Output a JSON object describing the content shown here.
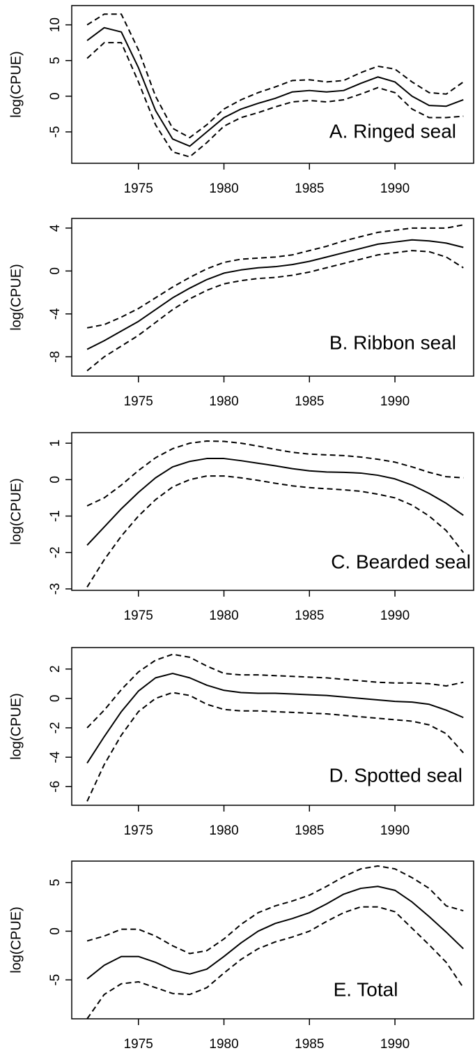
{
  "chart_data": [
    {
      "type": "line",
      "annotation": "A. Ringed seal",
      "y_label": "log(CPUE)",
      "x": [
        1972,
        1973,
        1974,
        1975,
        1976,
        1977,
        1978,
        1979,
        1980,
        1981,
        1982,
        1983,
        1984,
        1985,
        1986,
        1987,
        1988,
        1989,
        1990,
        1991,
        1992,
        1993,
        1994
      ],
      "xlim": [
        1971.1,
        1994.6
      ],
      "xticks": [
        1975,
        1980,
        1985,
        1990
      ],
      "ylim": [
        -9.4,
        12.7
      ],
      "yticks": [
        -5,
        0,
        5,
        10
      ],
      "series": [
        {
          "color": "#000000",
          "dash": false,
          "values": [
            7.8,
            9.6,
            9.0,
            4.0,
            -2.0,
            -6.0,
            -7.0,
            -5.0,
            -3.0,
            -1.8,
            -1.0,
            -0.3,
            0.6,
            0.8,
            0.6,
            0.8,
            1.8,
            2.7,
            2.0,
            0.0,
            -1.3,
            -1.4,
            -0.5
          ]
        },
        {
          "color": "#000000",
          "dash": true,
          "values": [
            10.0,
            11.5,
            11.5,
            6.5,
            0.0,
            -4.5,
            -5.8,
            -4.0,
            -1.8,
            -0.5,
            0.5,
            1.3,
            2.2,
            2.3,
            2.0,
            2.2,
            3.3,
            4.2,
            3.8,
            2.0,
            0.5,
            0.3,
            2.0
          ]
        },
        {
          "color": "#000000",
          "dash": true,
          "values": [
            5.3,
            7.5,
            7.5,
            2.0,
            -4.0,
            -7.8,
            -8.5,
            -6.5,
            -4.2,
            -3.0,
            -2.3,
            -1.5,
            -0.8,
            -0.6,
            -0.8,
            -0.5,
            0.3,
            1.2,
            0.5,
            -1.8,
            -3.0,
            -3.0,
            -2.8
          ]
        }
      ]
    },
    {
      "type": "line",
      "annotation": "B. Ribbon seal",
      "y_label": "log(CPUE)",
      "x": [
        1972,
        1973,
        1974,
        1975,
        1976,
        1977,
        1978,
        1979,
        1980,
        1981,
        1982,
        1983,
        1984,
        1985,
        1986,
        1987,
        1988,
        1989,
        1990,
        1991,
        1992,
        1993,
        1994
      ],
      "xlim": [
        1971.1,
        1994.6
      ],
      "xticks": [
        1975,
        1980,
        1985,
        1990
      ],
      "ylim": [
        -9.8,
        4.9
      ],
      "yticks": [
        -8,
        -4,
        0,
        4
      ],
      "series": [
        {
          "color": "#000000",
          "dash": false,
          "values": [
            -7.3,
            -6.5,
            -5.6,
            -4.7,
            -3.6,
            -2.5,
            -1.6,
            -0.8,
            -0.2,
            0.1,
            0.3,
            0.4,
            0.6,
            0.9,
            1.3,
            1.7,
            2.1,
            2.5,
            2.7,
            2.9,
            2.8,
            2.6,
            2.2
          ]
        },
        {
          "color": "#000000",
          "dash": true,
          "values": [
            -5.3,
            -5.0,
            -4.3,
            -3.5,
            -2.5,
            -1.5,
            -0.6,
            0.2,
            0.8,
            1.1,
            1.2,
            1.3,
            1.5,
            1.9,
            2.3,
            2.8,
            3.2,
            3.6,
            3.8,
            4.0,
            4.0,
            4.0,
            4.3
          ]
        },
        {
          "color": "#000000",
          "dash": true,
          "values": [
            -9.3,
            -8.0,
            -7.0,
            -6.0,
            -4.8,
            -3.6,
            -2.6,
            -1.8,
            -1.2,
            -0.9,
            -0.7,
            -0.6,
            -0.4,
            -0.1,
            0.3,
            0.7,
            1.1,
            1.5,
            1.7,
            1.9,
            1.8,
            1.3,
            0.3
          ]
        }
      ]
    },
    {
      "type": "line",
      "annotation": "C. Bearded seal",
      "y_label": "log(CPUE)",
      "x": [
        1972,
        1973,
        1974,
        1975,
        1976,
        1977,
        1978,
        1979,
        1980,
        1981,
        1982,
        1983,
        1984,
        1985,
        1986,
        1987,
        1988,
        1989,
        1990,
        1991,
        1992,
        1993,
        1994
      ],
      "xlim": [
        1971.1,
        1994.6
      ],
      "xticks": [
        1975,
        1980,
        1985,
        1990
      ],
      "ylim": [
        -3.04,
        1.29
      ],
      "yticks": [
        -3,
        -2,
        -1,
        0,
        1
      ],
      "series": [
        {
          "color": "#000000",
          "dash": false,
          "values": [
            -1.8,
            -1.3,
            -0.8,
            -0.35,
            0.05,
            0.35,
            0.5,
            0.58,
            0.58,
            0.52,
            0.45,
            0.38,
            0.3,
            0.24,
            0.21,
            0.2,
            0.18,
            0.12,
            0.02,
            -0.15,
            -0.38,
            -0.65,
            -0.98
          ]
        },
        {
          "color": "#000000",
          "dash": true,
          "values": [
            -0.72,
            -0.5,
            -0.15,
            0.25,
            0.6,
            0.85,
            1.0,
            1.06,
            1.05,
            1.0,
            0.92,
            0.83,
            0.75,
            0.7,
            0.68,
            0.66,
            0.62,
            0.56,
            0.48,
            0.35,
            0.2,
            0.08,
            0.05
          ]
        },
        {
          "color": "#000000",
          "dash": true,
          "values": [
            -2.95,
            -2.2,
            -1.55,
            -1.0,
            -0.55,
            -0.2,
            0.0,
            0.1,
            0.1,
            0.05,
            -0.02,
            -0.1,
            -0.17,
            -0.22,
            -0.25,
            -0.28,
            -0.32,
            -0.4,
            -0.5,
            -0.7,
            -1.0,
            -1.4,
            -2.0
          ]
        }
      ]
    },
    {
      "type": "line",
      "annotation": "D. Spotted seal",
      "y_label": "log(CPUE)",
      "x": [
        1972,
        1973,
        1974,
        1975,
        1976,
        1977,
        1978,
        1979,
        1980,
        1981,
        1982,
        1983,
        1984,
        1985,
        1986,
        1987,
        1988,
        1989,
        1990,
        1991,
        1992,
        1993,
        1994
      ],
      "xlim": [
        1971.1,
        1994.6
      ],
      "xticks": [
        1975,
        1980,
        1985,
        1990
      ],
      "ylim": [
        -7.27,
        3.46
      ],
      "yticks": [
        -6,
        -4,
        -2,
        0,
        2
      ],
      "series": [
        {
          "color": "#000000",
          "dash": false,
          "values": [
            -4.4,
            -2.6,
            -0.9,
            0.5,
            1.4,
            1.7,
            1.4,
            0.9,
            0.55,
            0.4,
            0.35,
            0.35,
            0.3,
            0.25,
            0.2,
            0.1,
            0.0,
            -0.1,
            -0.2,
            -0.25,
            -0.4,
            -0.8,
            -1.3
          ]
        },
        {
          "color": "#000000",
          "dash": true,
          "values": [
            -2.0,
            -0.8,
            0.6,
            1.8,
            2.6,
            3.0,
            2.8,
            2.2,
            1.7,
            1.6,
            1.6,
            1.55,
            1.5,
            1.45,
            1.4,
            1.3,
            1.2,
            1.1,
            1.05,
            1.05,
            1.0,
            0.85,
            1.1
          ]
        },
        {
          "color": "#000000",
          "dash": true,
          "values": [
            -7.0,
            -4.5,
            -2.5,
            -0.9,
            0.0,
            0.4,
            0.2,
            -0.4,
            -0.75,
            -0.85,
            -0.85,
            -0.9,
            -0.95,
            -1.0,
            -1.05,
            -1.15,
            -1.25,
            -1.35,
            -1.45,
            -1.55,
            -1.8,
            -2.4,
            -3.7
          ]
        }
      ]
    },
    {
      "type": "line",
      "annotation": "E. Total",
      "y_label": "log(CPUE)",
      "x": [
        1972,
        1973,
        1974,
        1975,
        1976,
        1977,
        1978,
        1979,
        1980,
        1981,
        1982,
        1983,
        1984,
        1985,
        1986,
        1987,
        1988,
        1989,
        1990,
        1991,
        1992,
        1993,
        1994
      ],
      "xlim": [
        1971.1,
        1994.6
      ],
      "xticks": [
        1975,
        1980,
        1985,
        1990
      ],
      "ylim": [
        -9.0,
        7.2
      ],
      "yticks": [
        -5,
        0,
        5
      ],
      "series": [
        {
          "color": "#000000",
          "dash": false,
          "values": [
            -4.9,
            -3.5,
            -2.6,
            -2.6,
            -3.2,
            -4.0,
            -4.4,
            -3.9,
            -2.6,
            -1.2,
            0.0,
            0.8,
            1.3,
            1.9,
            2.8,
            3.8,
            4.4,
            4.6,
            4.2,
            3.0,
            1.5,
            -0.1,
            -1.8
          ]
        },
        {
          "color": "#000000",
          "dash": true,
          "values": [
            -1.0,
            -0.5,
            0.2,
            0.2,
            -0.5,
            -1.5,
            -2.3,
            -2.0,
            -0.8,
            0.7,
            1.9,
            2.6,
            3.1,
            3.7,
            4.6,
            5.6,
            6.4,
            6.7,
            6.4,
            5.5,
            4.4,
            2.6,
            2.1
          ]
        },
        {
          "color": "#000000",
          "dash": true,
          "values": [
            -9.0,
            -6.5,
            -5.4,
            -5.2,
            -5.8,
            -6.4,
            -6.5,
            -5.8,
            -4.3,
            -2.9,
            -1.8,
            -1.1,
            -0.6,
            0.0,
            1.0,
            1.9,
            2.5,
            2.5,
            2.0,
            0.3,
            -1.4,
            -3.2,
            -5.8
          ]
        }
      ]
    }
  ]
}
